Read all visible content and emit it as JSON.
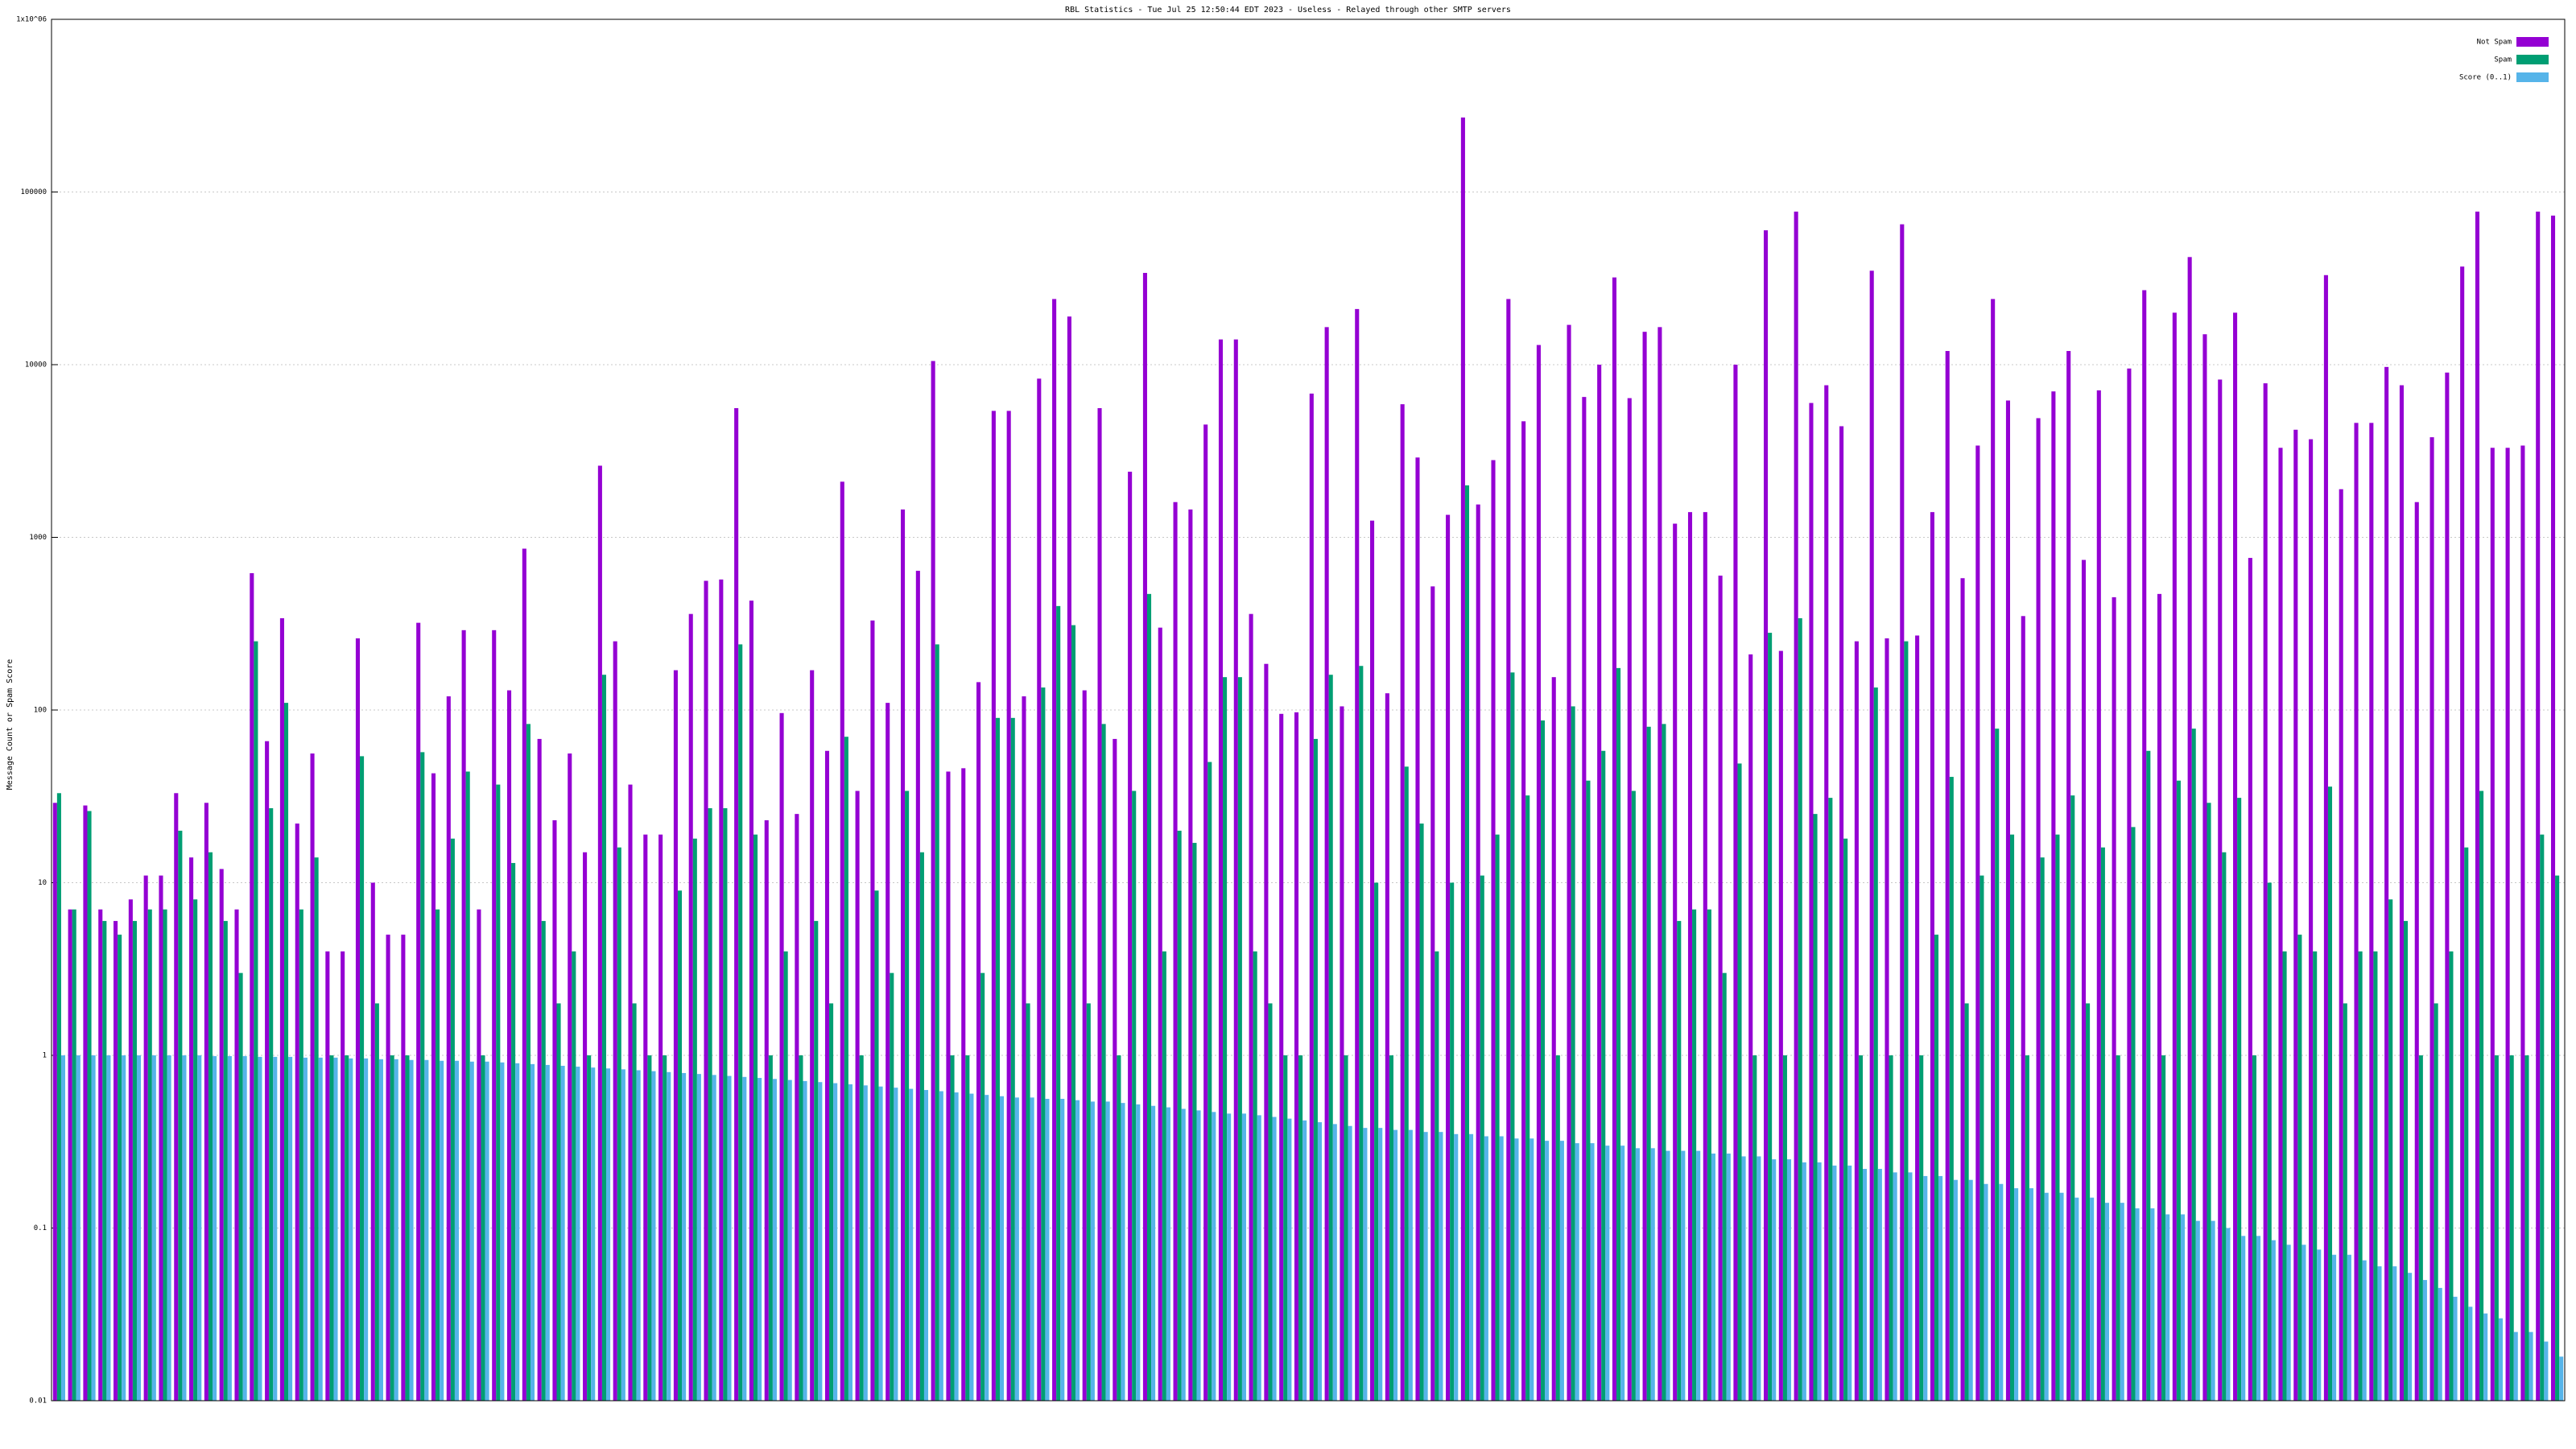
{
  "chart_data": {
    "type": "bar",
    "log_scale": true,
    "grid": true,
    "legend": "upper right",
    "title": "RBL Statistics - Tue Jul 25 12:50:44 EDT 2023 - Useless - Relayed through other SMTP servers",
    "y_label": "Message Count or Spam Score",
    "ylim": [
      0.01,
      1000000
    ],
    "yticks": [
      0.01,
      0.1,
      1,
      10,
      100,
      1000,
      10000,
      100000,
      {
        "value": 1000000,
        "label": "1x10^06"
      }
    ],
    "categories": [
      null,
      null,
      null,
      null,
      null,
      null,
      null,
      null,
      null,
      null,
      null,
      null,
      null,
      null,
      null,
      null,
      null,
      null,
      null,
      null,
      null,
      null,
      null,
      null,
      null,
      null,
      null,
      null,
      null,
      null,
      null,
      null,
      null,
      null,
      null,
      null,
      null,
      null,
      null,
      null,
      null,
      null,
      null,
      null,
      null,
      null,
      null,
      null,
      null,
      null,
      null,
      null,
      null,
      null,
      null,
      null,
      null,
      null,
      null,
      null,
      null,
      null,
      null,
      null,
      null,
      null,
      null,
      null,
      null,
      null,
      null,
      null,
      null,
      null,
      null,
      null,
      null,
      null,
      null,
      null,
      null,
      null,
      null,
      null,
      null,
      null,
      null,
      null,
      null,
      null,
      null,
      null,
      null,
      null,
      null,
      null,
      null,
      null,
      null,
      null,
      null,
      null,
      null,
      null,
      null,
      null,
      null,
      null,
      null,
      null,
      null,
      null,
      null,
      null,
      null,
      null,
      null,
      null,
      null,
      null,
      null,
      null,
      null,
      null,
      null,
      null,
      null,
      null,
      null,
      null,
      null,
      null,
      null,
      null,
      null,
      null,
      null,
      null,
      null,
      null,
      null,
      null,
      null,
      null,
      null,
      null,
      null,
      null,
      null,
      null,
      null,
      null,
      null,
      null,
      null,
      null,
      null,
      null,
      null,
      null,
      null,
      null,
      null,
      null,
      null,
      null
    ],
    "series": [
      {
        "name": "Not Spam",
        "color": "#9400d3",
        "values": [
          29,
          7,
          28,
          7,
          6,
          8,
          11,
          11,
          33,
          14,
          29,
          12,
          7,
          620,
          66,
          340,
          22,
          56,
          4,
          4,
          260,
          10,
          5,
          5,
          320,
          43,
          120,
          290,
          7,
          290,
          130,
          860,
          68,
          23,
          56,
          15,
          2600,
          250,
          37,
          19,
          19,
          170,
          360,
          560,
          570,
          5600,
          430,
          23,
          96,
          25,
          170,
          58,
          2100,
          34,
          330,
          110,
          1450,
          640,
          10500,
          44,
          46,
          145,
          5400,
          5400,
          120,
          8300,
          24000,
          19000,
          130,
          5600,
          68,
          2400,
          34000,
          300,
          1600,
          1450,
          4500,
          14000,
          14000,
          360,
          185,
          95,
          97,
          6800,
          16500,
          105,
          21000,
          1250,
          125,
          5900,
          2900,
          520,
          1350,
          270000,
          1550,
          2800,
          24000,
          4700,
          13000,
          155,
          17000,
          6500,
          10000,
          32000,
          6400,
          15500,
          16500,
          1200,
          1400,
          1400,
          600,
          10000,
          210,
          60000,
          220,
          77000,
          6000,
          7600,
          4400,
          250,
          35000,
          260,
          65000,
          270,
          1400,
          12000,
          580,
          3400,
          24000,
          6200,
          350,
          4900,
          7000,
          12000,
          740,
          7100,
          450,
          9500,
          27000,
          470,
          20000,
          42000,
          15000,
          8200,
          20000,
          760,
          7800,
          3300,
          4200,
          3700,
          33000,
          1900,
          4600,
          4600,
          9700,
          7600,
          1600,
          3800,
          9000,
          37000,
          77000,
          3300,
          3300,
          3400,
          77000,
          73000
        ]
      },
      {
        "name": "Spam",
        "color": "#009e73",
        "values": [
          33,
          7,
          26,
          6,
          5,
          6,
          7,
          7,
          20,
          8,
          15,
          6,
          3,
          250,
          27,
          110,
          7,
          14,
          1,
          1,
          54,
          2,
          1,
          1,
          57,
          7,
          18,
          44,
          1,
          37,
          13,
          83,
          6,
          2,
          4,
          1,
          160,
          16,
          2,
          1,
          1,
          9,
          18,
          27,
          27,
          240,
          19,
          1,
          4,
          1,
          6,
          2,
          70,
          1,
          9,
          3,
          34,
          15,
          240,
          1,
          1,
          3,
          90,
          90,
          2,
          135,
          400,
          310,
          2,
          83,
          1,
          34,
          470,
          4,
          20,
          17,
          50,
          155,
          155,
          4,
          2,
          1,
          1,
          68,
          160,
          1,
          180,
          10,
          1,
          47,
          22,
          4,
          10,
          2000,
          11,
          19,
          165,
          32,
          87,
          1,
          105,
          39,
          58,
          175,
          34,
          80,
          83,
          6,
          7,
          7,
          3,
          49,
          1,
          280,
          1,
          340,
          25,
          31,
          18,
          1,
          135,
          1,
          250,
          1,
          5,
          41,
          2,
          11,
          78,
          19,
          1,
          14,
          19,
          32,
          2,
          16,
          1,
          21,
          58,
          1,
          39,
          78,
          29,
          15,
          31,
          1,
          10,
          4,
          5,
          4,
          36,
          2,
          4,
          4,
          8,
          6,
          1,
          2,
          4,
          16,
          34,
          1,
          1,
          1,
          19,
          11
        ]
      },
      {
        "name": "Score (0..1)",
        "color": "#56b4e9",
        "values": [
          1,
          1,
          1,
          1,
          1,
          1,
          1,
          1,
          1,
          1,
          0.99,
          0.99,
          0.99,
          0.98,
          0.98,
          0.98,
          0.97,
          0.97,
          0.97,
          0.96,
          0.96,
          0.95,
          0.95,
          0.94,
          0.94,
          0.93,
          0.93,
          0.92,
          0.92,
          0.91,
          0.9,
          0.89,
          0.88,
          0.87,
          0.86,
          0.85,
          0.84,
          0.83,
          0.82,
          0.81,
          0.8,
          0.79,
          0.78,
          0.77,
          0.76,
          0.75,
          0.74,
          0.73,
          0.72,
          0.71,
          0.7,
          0.69,
          0.68,
          0.67,
          0.66,
          0.65,
          0.64,
          0.63,
          0.62,
          0.61,
          0.6,
          0.59,
          0.58,
          0.57,
          0.57,
          0.56,
          0.56,
          0.55,
          0.54,
          0.54,
          0.53,
          0.52,
          0.51,
          0.5,
          0.49,
          0.48,
          0.47,
          0.46,
          0.46,
          0.45,
          0.44,
          0.43,
          0.42,
          0.41,
          0.4,
          0.39,
          0.38,
          0.38,
          0.37,
          0.37,
          0.36,
          0.36,
          0.35,
          0.35,
          0.34,
          0.34,
          0.33,
          0.33,
          0.32,
          0.32,
          0.31,
          0.31,
          0.3,
          0.3,
          0.29,
          0.29,
          0.28,
          0.28,
          0.28,
          0.27,
          0.27,
          0.26,
          0.26,
          0.25,
          0.25,
          0.24,
          0.24,
          0.23,
          0.23,
          0.22,
          0.22,
          0.21,
          0.21,
          0.2,
          0.2,
          0.19,
          0.19,
          0.18,
          0.18,
          0.17,
          0.17,
          0.16,
          0.16,
          0.15,
          0.15,
          0.14,
          0.14,
          0.13,
          0.13,
          0.12,
          0.12,
          0.11,
          0.11,
          0.1,
          0.09,
          0.09,
          0.085,
          0.08,
          0.08,
          0.075,
          0.07,
          0.07,
          0.065,
          0.06,
          0.06,
          0.055,
          0.05,
          0.045,
          0.04,
          0.035,
          0.032,
          0.03,
          0.025,
          0.025,
          0.022,
          0.018
        ]
      }
    ]
  }
}
